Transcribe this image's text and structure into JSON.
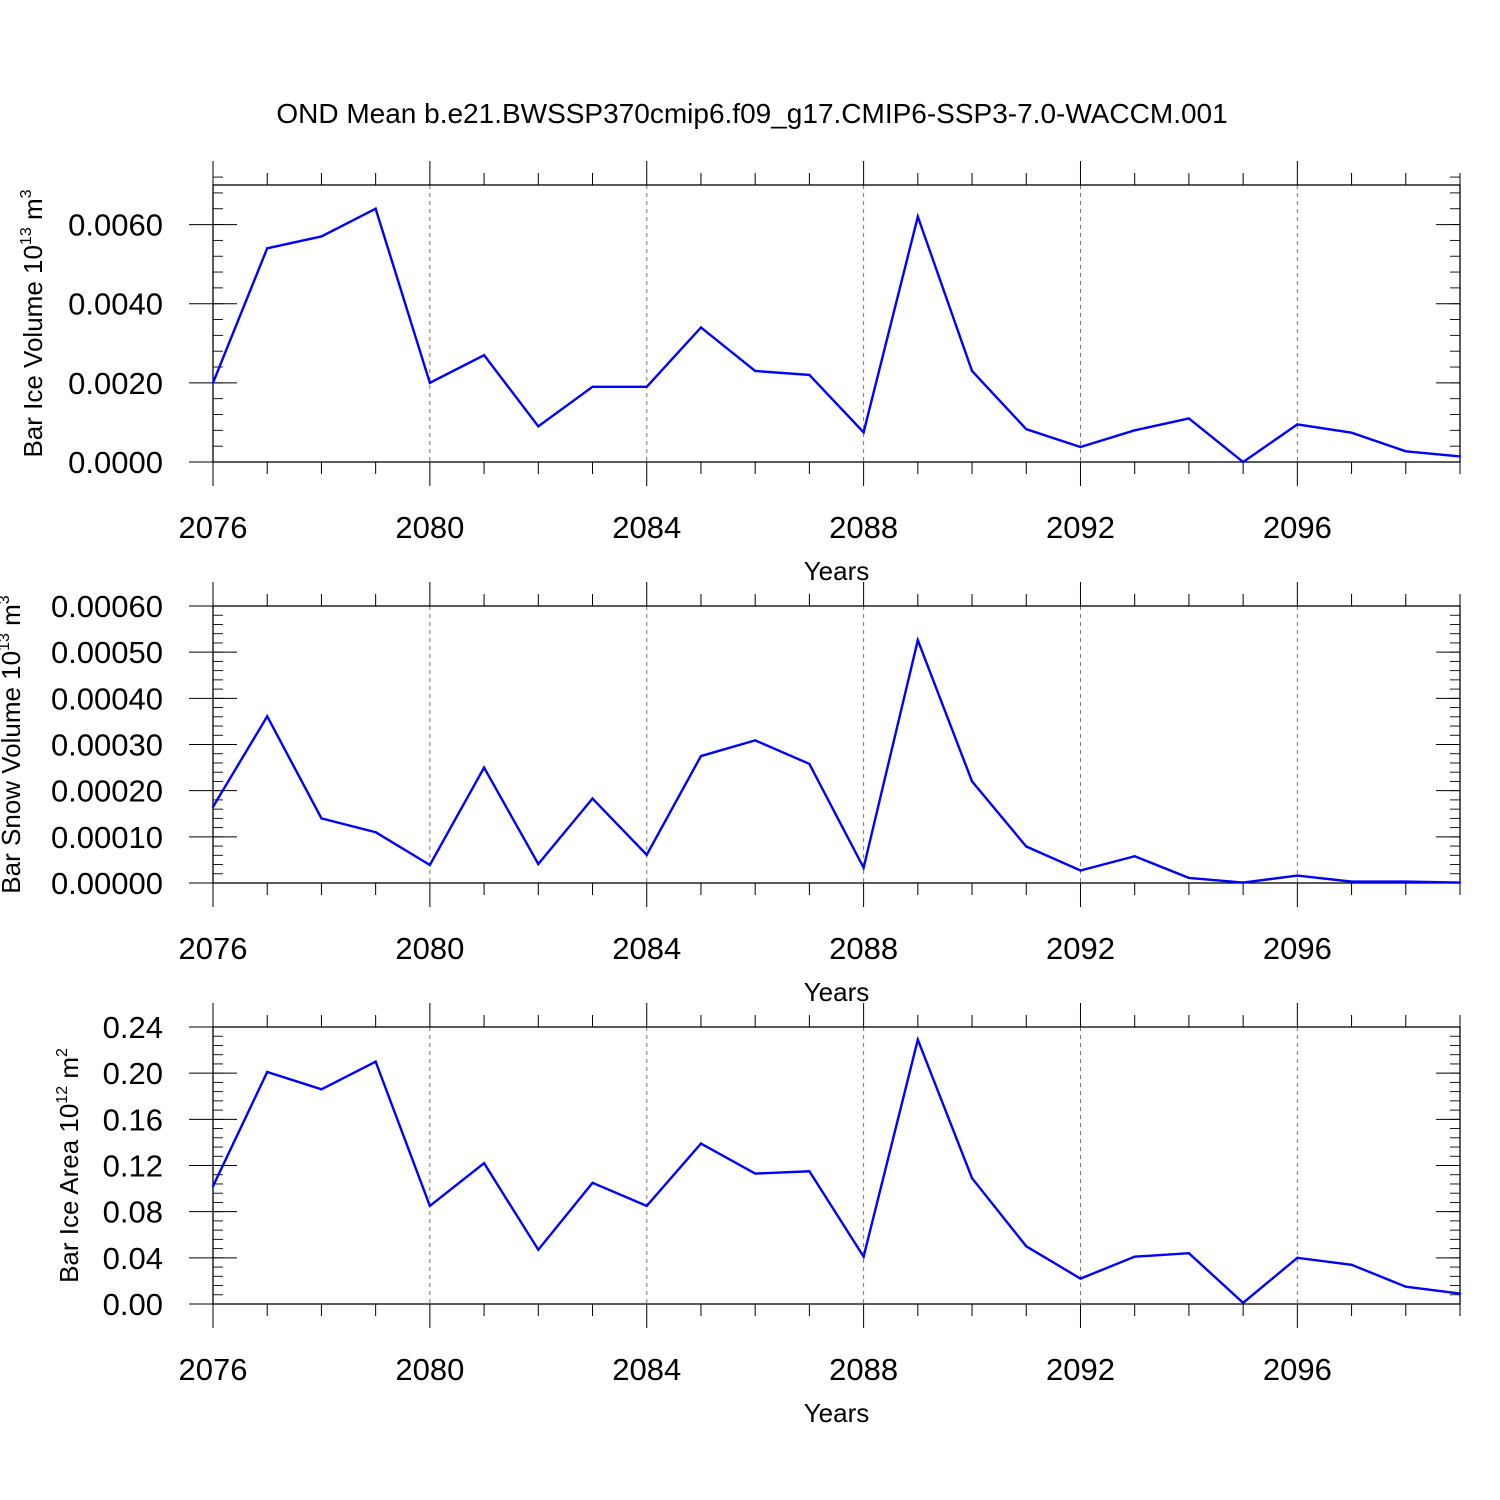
{
  "title": "OND Mean b.e21.BWSSP370cmip6.f09_g17.CMIP6-SSP3-7.0-WACCM.001",
  "colors": {
    "line": "#0000ff",
    "axis": "#000000",
    "grid": "#777777"
  },
  "chart_data": [
    {
      "type": "line",
      "xlabel": "Years",
      "ylabel": {
        "prefix": "Bar Ice Volume 10",
        "exp": "13",
        "unit": " m",
        "unit_exp": "3"
      },
      "x": [
        2076,
        2077,
        2078,
        2079,
        2080,
        2081,
        2082,
        2083,
        2084,
        2085,
        2086,
        2087,
        2088,
        2089,
        2090,
        2091,
        2092,
        2093,
        2094,
        2095,
        2096,
        2097,
        2098,
        2099
      ],
      "xlim": [
        2076,
        2099
      ],
      "xticks": [
        2076,
        2080,
        2084,
        2088,
        2092,
        2096
      ],
      "xtick_labels": [
        "2076",
        "2080",
        "2084",
        "2088",
        "2092",
        "2096"
      ],
      "ylim": [
        0,
        0.007
      ],
      "yticks": [
        0,
        0.002,
        0.004,
        0.006
      ],
      "ytick_labels": [
        "0.0000",
        "0.0020",
        "0.0040",
        "0.0060"
      ],
      "yminor": 0.0004,
      "values": [
        0.002,
        0.0054,
        0.0057,
        0.0064,
        0.002,
        0.0027,
        0.0009,
        0.0019,
        0.0019,
        0.0034,
        0.0023,
        0.0022,
        0.00075,
        0.0062,
        0.0023,
        0.00083,
        0.00038,
        0.0008,
        0.0011,
        0.0,
        0.00095,
        0.00074,
        0.00027,
        0.00014
      ]
    },
    {
      "type": "line",
      "xlabel": "Years",
      "ylabel": {
        "prefix": "Bar Snow Volume 10",
        "exp": "13",
        "unit": " m",
        "unit_exp": "3"
      },
      "x": [
        2076,
        2077,
        2078,
        2079,
        2080,
        2081,
        2082,
        2083,
        2084,
        2085,
        2086,
        2087,
        2088,
        2089,
        2090,
        2091,
        2092,
        2093,
        2094,
        2095,
        2096,
        2097,
        2098,
        2099
      ],
      "xlim": [
        2076,
        2099
      ],
      "xticks": [
        2076,
        2080,
        2084,
        2088,
        2092,
        2096
      ],
      "xtick_labels": [
        "2076",
        "2080",
        "2084",
        "2088",
        "2092",
        "2096"
      ],
      "ylim": [
        0,
        0.0006
      ],
      "yticks": [
        0,
        0.0001,
        0.0002,
        0.0003,
        0.0004,
        0.0005,
        0.0006
      ],
      "ytick_labels": [
        "0.00000",
        "0.00010",
        "0.00020",
        "0.00030",
        "0.00040",
        "0.00050",
        "0.00060"
      ],
      "yminor": 2e-05,
      "values": [
        0.000165,
        0.000361,
        0.00014,
        0.00011,
        3.9e-05,
        0.00025,
        4.1e-05,
        0.000183,
        6.1e-05,
        0.000275,
        0.000309,
        0.000258,
        3.3e-05,
        0.000526,
        0.00022,
        7.9e-05,
        2.7e-05,
        5.8e-05,
        1.1e-05,
        1e-06,
        1.6e-05,
        3e-06,
        3e-06,
        1e-06
      ]
    },
    {
      "type": "line",
      "xlabel": "Years",
      "ylabel": {
        "prefix": "Bar Ice Area 10",
        "exp": "12",
        "unit": " m",
        "unit_exp": "2"
      },
      "x": [
        2076,
        2077,
        2078,
        2079,
        2080,
        2081,
        2082,
        2083,
        2084,
        2085,
        2086,
        2087,
        2088,
        2089,
        2090,
        2091,
        2092,
        2093,
        2094,
        2095,
        2096,
        2097,
        2098,
        2099
      ],
      "xlim": [
        2076,
        2099
      ],
      "xticks": [
        2076,
        2080,
        2084,
        2088,
        2092,
        2096
      ],
      "xtick_labels": [
        "2076",
        "2080",
        "2084",
        "2088",
        "2092",
        "2096"
      ],
      "ylim": [
        0,
        0.24
      ],
      "yticks": [
        0,
        0.04,
        0.08,
        0.12,
        0.16,
        0.2,
        0.24
      ],
      "ytick_labels": [
        "0.00",
        "0.04",
        "0.08",
        "0.12",
        "0.16",
        "0.20",
        "0.24"
      ],
      "yminor": 0.008,
      "values": [
        0.102,
        0.201,
        0.186,
        0.21,
        0.085,
        0.122,
        0.047,
        0.105,
        0.085,
        0.139,
        0.113,
        0.115,
        0.041,
        0.229,
        0.109,
        0.05,
        0.022,
        0.041,
        0.044,
        0.001,
        0.04,
        0.034,
        0.015,
        0.009
      ]
    }
  ]
}
